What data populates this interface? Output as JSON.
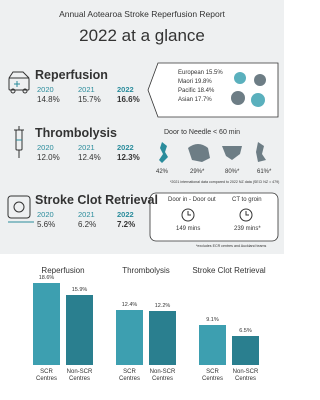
{
  "header": {
    "subtitle": "Annual Aotearoa Stroke Reperfusion Report",
    "title": "2022 at a glance"
  },
  "sections": [
    {
      "title": "Reperfusion",
      "years": [
        "2020",
        "2021",
        "2022"
      ],
      "rates": [
        "14.8%",
        "15.7%",
        "16.6%"
      ],
      "breakdown": [
        "European 15.5%",
        "Maori 19.8%",
        "Pacific 18.4%",
        "Asian 17.7%"
      ]
    },
    {
      "title": "Thrombolysis",
      "years": [
        "2020",
        "2021",
        "2022"
      ],
      "rates": [
        "12.0%",
        "12.4%",
        "12.3%"
      ],
      "callout": "Door to Needle < 60 min",
      "map_labels": [
        "42%",
        "29%*",
        "80%*",
        "61%*"
      ],
      "note": "*2021 international data compared to 2022 NZ data (SECI NZ = 479)"
    },
    {
      "title": "Stroke Clot Retrieval",
      "years": [
        "2020",
        "2021",
        "2022"
      ],
      "rates": [
        "5.6%",
        "6.2%",
        "7.2%"
      ],
      "metrics": [
        {
          "label": "Door in - Door out",
          "value": "149 mins"
        },
        {
          "label": "CT to groin",
          "value": "239 mins*"
        }
      ],
      "note": "*excludes ECR centres and Auckland teams"
    }
  ],
  "charts": [
    {
      "type": "bar",
      "title": "Reperfusion",
      "categories": [
        "SCR Centres",
        "Non-SCR Centres"
      ],
      "values": [
        18.6,
        15.9
      ],
      "value_labels": [
        "18.6%",
        "15.9%"
      ],
      "colors": [
        "#3d9fb0",
        "#2a7f8f"
      ]
    },
    {
      "type": "bar",
      "title": "Thrombolysis",
      "categories": [
        "SCR Centres",
        "Non-SCR Centres"
      ],
      "values": [
        12.4,
        12.2
      ],
      "value_labels": [
        "12.4%",
        "12.2%"
      ],
      "colors": [
        "#3d9fb0",
        "#2a7f8f"
      ]
    },
    {
      "type": "bar",
      "title": "Stroke Clot Retrieval",
      "categories": [
        "SCR Centres",
        "Non-SCR Centres"
      ],
      "values": [
        9.1,
        6.5
      ],
      "value_labels": [
        "9.1%",
        "6.5%"
      ],
      "colors": [
        "#3d9fb0",
        "#2a7f8f"
      ]
    }
  ]
}
